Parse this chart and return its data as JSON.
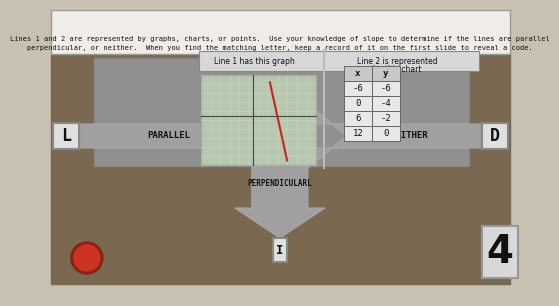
{
  "header_text_line1": "Lines 1 and 2 are represented by graphs, charts, or points.  Use your knowledge of slope to determine if the lines are parallel",
  "header_text_line2": "perpendicular, or neither.  When you find the matching letter, keep a record of it on the first slide to reveal a code.",
  "line1_label": "Line 1 has this graph",
  "line2_label": "Line 2 is represented",
  "line2_label2": "by this chart",
  "parallel_text": "PARALLEL",
  "neither_text": "NEITHER",
  "perp_text": "PERPENDICULARL",
  "letter_L": "L",
  "letter_D": "D",
  "letter_I": "I",
  "number_4": "4",
  "table_headers": [
    "x",
    "y"
  ],
  "table_data": [
    [
      -6,
      -6
    ],
    [
      0,
      -4
    ],
    [
      6,
      -2
    ],
    [
      12,
      0
    ]
  ],
  "outer_bg": "#c8c0b0",
  "inner_bg": "#7a6850",
  "arrow_fill": "#a0a0a0",
  "arrow_edge": "#888888",
  "header_bg": "#f0ece8",
  "header_edge": "#999999",
  "graph_bg": "#b8c8b0",
  "graph_grid": "#c8d8c0",
  "graph_axis": "#444444",
  "line_color": "#cc2222",
  "table_header_bg": "#c8c8c8",
  "table_cell_bg": "#e8e8e8",
  "table_edge": "#666666",
  "label_box_bg": "#c8c8c8",
  "label_box_edge": "#888888",
  "white_box_bg": "#e0e0e0",
  "white_box_edge": "#999999",
  "four_box_bg": "#d8d8d8",
  "circle_color": "#cc3322"
}
